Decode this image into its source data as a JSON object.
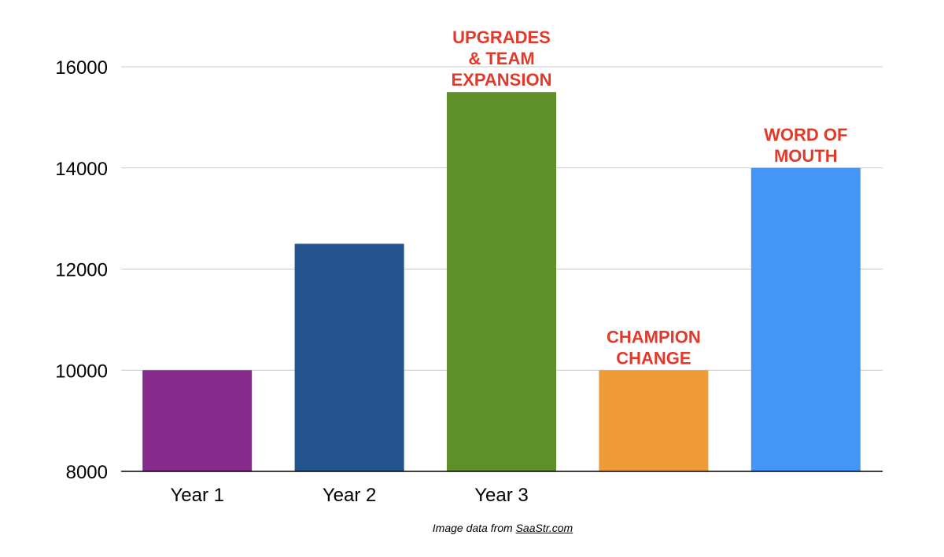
{
  "chart_data": {
    "type": "bar",
    "title": "",
    "xlabel": "",
    "ylabel": "",
    "ylim": [
      8000,
      16000
    ],
    "yticks": [
      8000,
      10000,
      12000,
      14000,
      16000
    ],
    "grid": true,
    "categories": [
      "Year 1",
      "Year 2",
      "Year 3",
      "",
      ""
    ],
    "values": [
      10000,
      12500,
      15500,
      10000,
      14000
    ],
    "colors": [
      "#862b8c",
      "#22538d",
      "#5f8f28",
      "#ef9b37",
      "#4395f6"
    ],
    "annotations": [
      {
        "bar_index": 2,
        "lines": [
          "UPGRADES",
          "& TEAM",
          "EXPANSION"
        ]
      },
      {
        "bar_index": 3,
        "lines": [
          "CHAMPION",
          "CHANGE"
        ]
      },
      {
        "bar_index": 4,
        "lines": [
          "WORD OF",
          "MOUTH"
        ]
      }
    ],
    "annotation_color": "#e23a2a",
    "gridline_color": "#c8c8c8",
    "axis_color": "#000000"
  },
  "footer": {
    "prefix": "Image data from ",
    "source": "SaaStr.com"
  }
}
